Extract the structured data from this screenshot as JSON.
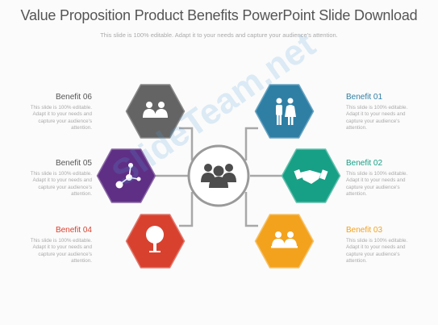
{
  "title": "Value Proposition Product Benefits PowerPoint Slide Download",
  "subtitle": "This slide is 100% editable.  Adapt it to your needs and capture your audience's attention.",
  "watermark": "SlideTeam.net",
  "benefits": [
    {
      "label": "Benefit 01",
      "desc": "This slide is 100% editable. Adapt it to your needs and capture your audience's attention.",
      "color": "#2f7fa5",
      "icon": "business-people-icon"
    },
    {
      "label": "Benefit 02",
      "desc": "This slide is 100% editable. Adapt it to your needs and capture your audience's attention.",
      "color": "#17a086",
      "icon": "handshake-icon"
    },
    {
      "label": "Benefit 03",
      "desc": "This slide is 100% editable. Adapt it to your needs and capture your audience's attention.",
      "color": "#f3a21d",
      "icon": "team-pair-icon"
    },
    {
      "label": "Benefit 04",
      "desc": "This slide is 100% editable. Adapt it to your needs and capture your audience's attention.",
      "color": "#d9412f",
      "icon": "tree-icon"
    },
    {
      "label": "Benefit 05",
      "desc": "This slide is 100% editable. Adapt it to your needs and capture your audience's attention.",
      "color": "#5f2f85",
      "icon": "network-icon"
    },
    {
      "label": "Benefit 06",
      "desc": "This slide is 100% editable. Adapt it to your needs and capture your audience's attention.",
      "color": "#646464",
      "icon": "users-pair-icon"
    }
  ],
  "center": {
    "icon": "team-group-icon",
    "ring_color": "#9a9a9a",
    "icon_color": "#4d4d4d"
  },
  "colors": {
    "title": "#555555",
    "line": "#a8a8a8"
  }
}
